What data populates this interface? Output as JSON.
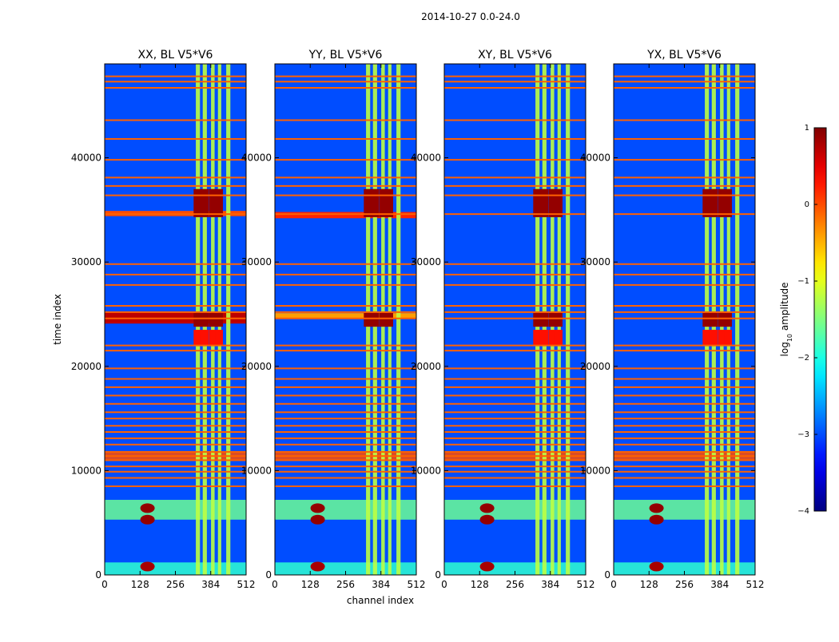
{
  "figure": {
    "suptitle": "2014-10-27 0.0-24.0",
    "xlabel": "channel index",
    "ylabel": "time index"
  },
  "chart_data": {
    "type": "heatmap",
    "title": "2014-10-27 0.0-24.0",
    "xlabel": "channel index",
    "ylabel": "time index",
    "xlim": [
      0,
      512
    ],
    "ylim": [
      0,
      49000
    ],
    "x_ticks": [
      0,
      128,
      256,
      384,
      512
    ],
    "y_ticks": [
      0,
      10000,
      20000,
      30000,
      40000
    ],
    "panels": [
      {
        "title": "XX, BL V5*V6",
        "pol": "XX"
      },
      {
        "title": "YY, BL V5*V6",
        "pol": "YY"
      },
      {
        "title": "XY, BL V5*V6",
        "pol": "XY"
      },
      {
        "title": "YX, BL V5*V6",
        "pol": "YX"
      }
    ],
    "colorbar": {
      "label": "log₁₀ amplitude",
      "label_base": "log",
      "label_sub": "10",
      "label_rest": " amplitude",
      "range": [
        -4,
        1
      ],
      "ticks": [
        {
          "value": 1,
          "label": "1"
        },
        {
          "value": 0,
          "label": "0"
        },
        {
          "value": -1,
          "label": "−1"
        },
        {
          "value": -2,
          "label": "−2"
        },
        {
          "value": -3,
          "label": "−3"
        },
        {
          "value": -4,
          "label": "−4"
        }
      ],
      "colormap": "jet"
    },
    "background_level": -3.0,
    "vertical_bands": {
      "channel_ranges": [
        [
          330,
          345
        ],
        [
          355,
          370
        ],
        [
          385,
          398
        ],
        [
          410,
          422
        ],
        [
          440,
          455
        ]
      ],
      "level": -1.2
    },
    "horizontal_lines": {
      "time_values": [
        47800,
        47300,
        46700,
        43600,
        41800,
        39800,
        38100,
        37300,
        36400,
        34600,
        29800,
        28800,
        27800,
        25800,
        25200,
        24600,
        22000,
        21500,
        19800,
        18800,
        18000,
        17200,
        16400,
        15600,
        15000,
        14300,
        13700,
        13100,
        12500,
        11800,
        11400,
        11000,
        10400,
        9900,
        9300,
        8500
      ],
      "level": -0.1
    },
    "broad_bands": [
      {
        "time_range": [
          11000,
          11800
        ],
        "level": 0.0
      },
      {
        "time_range": [
          5300,
          7200
        ],
        "level": -1.6
      },
      {
        "time_range": [
          0,
          1200
        ],
        "level": -1.9
      }
    ],
    "rfi_bursts": [
      {
        "time": 6400,
        "channel": 155,
        "level": 0.9
      },
      {
        "time": 5300,
        "channel": 155,
        "level": 0.9
      },
      {
        "time": 800,
        "channel": 155,
        "level": 0.8
      }
    ],
    "saturated_blocks": [
      {
        "time_range": [
          34300,
          37000
        ],
        "level": 0.9,
        "panels": [
          "XX",
          "YY",
          "XY",
          "YX"
        ]
      },
      {
        "time_range": [
          23800,
          25200
        ],
        "level": 0.9,
        "panels": [
          "XX",
          "YY",
          "XY",
          "YX"
        ]
      },
      {
        "time_range": [
          22000,
          23500
        ],
        "level": 0.3,
        "panels": [
          "XX",
          "XY",
          "YX"
        ]
      }
    ],
    "panel_bands": [
      {
        "pol": "XX",
        "time_range": [
          24100,
          25200
        ],
        "level": 0.7
      },
      {
        "pol": "XX",
        "time_range": [
          34400,
          34900
        ],
        "level": 0.0
      },
      {
        "pol": "YY",
        "time_range": [
          34200,
          34800
        ],
        "level": 0.2
      },
      {
        "pol": "YY",
        "time_range": [
          24600,
          25100
        ],
        "level": -0.4
      }
    ]
  }
}
